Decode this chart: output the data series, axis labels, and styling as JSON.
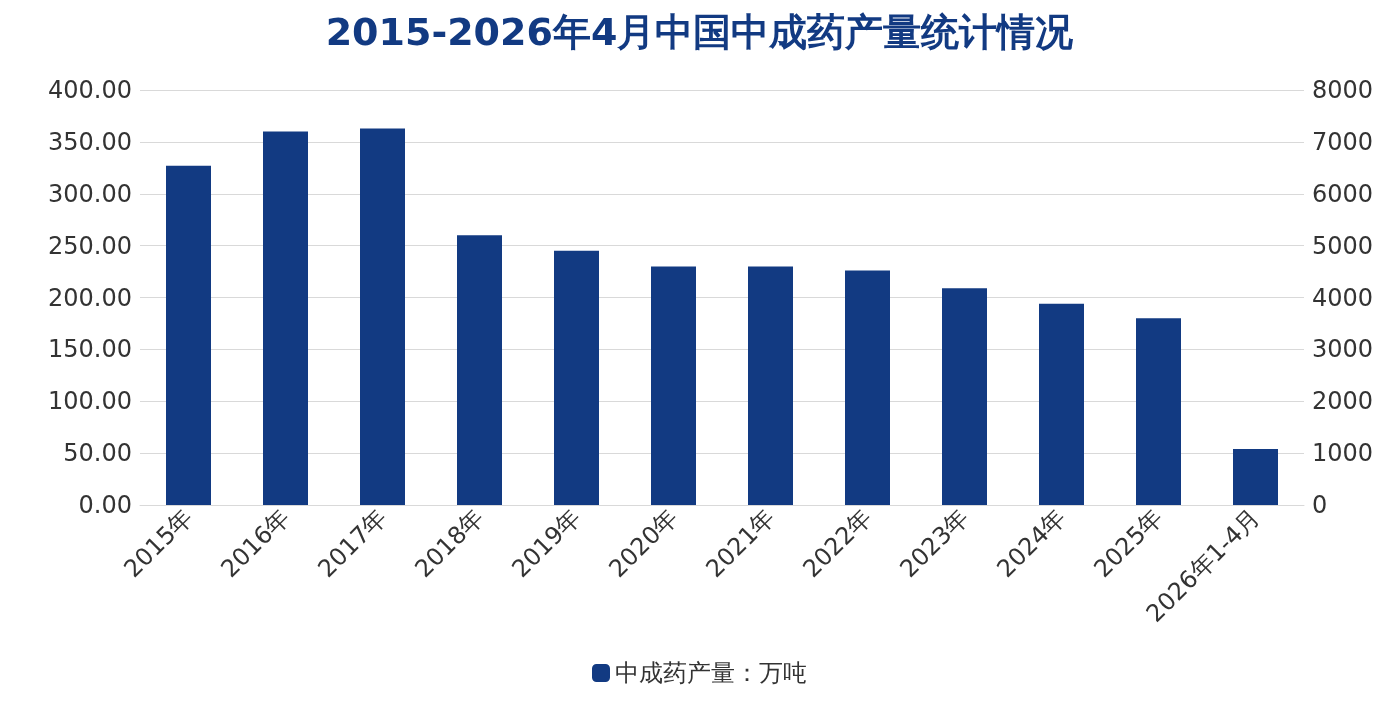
{
  "chart_data": {
    "type": "bar",
    "title": "2015-2026年4月中国中成药产量统计情况",
    "categories": [
      "2015年",
      "2016年",
      "2017年",
      "2018年",
      "2019年",
      "2020年",
      "2021年",
      "2022年",
      "2023年",
      "2024年",
      "2025年",
      "2026年1-4月"
    ],
    "series": [
      {
        "name": "中成药产量：万吨",
        "color": "#123a82",
        "values": [
          327,
          360,
          363,
          260,
          245,
          230,
          230,
          226,
          209,
          194,
          180,
          54
        ]
      }
    ],
    "ylim": [
      0,
      400
    ],
    "yticks": [
      {
        "value": 0,
        "label": "0.00"
      },
      {
        "value": 50,
        "label": "50.00"
      },
      {
        "value": 100,
        "label": "100.00"
      },
      {
        "value": 150,
        "label": "150.00"
      },
      {
        "value": 200,
        "label": "200.00"
      },
      {
        "value": 250,
        "label": "250.00"
      },
      {
        "value": 300,
        "label": "300.00"
      },
      {
        "value": 350,
        "label": "350.00"
      },
      {
        "value": 400,
        "label": "400.00"
      }
    ],
    "y2lim": [
      0,
      8000
    ],
    "y2ticks": [
      0,
      1000,
      2000,
      3000,
      4000,
      5000,
      6000,
      7000,
      8000
    ],
    "grid": "y",
    "legend": "bottom"
  }
}
